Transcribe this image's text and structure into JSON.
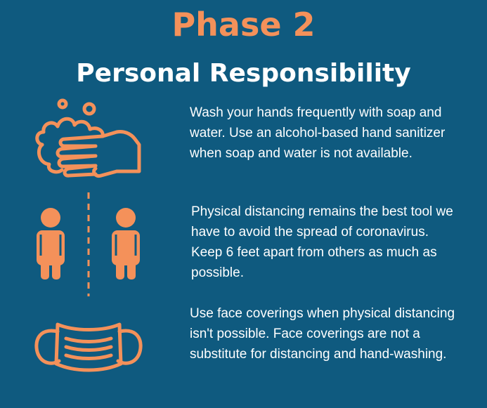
{
  "title": "Phase 2",
  "subtitle": "Personal Responsibility",
  "colors": {
    "background": "#0f5a7f",
    "accent": "#f4915a",
    "text": "#ffffff"
  },
  "items": [
    {
      "icon": "hand-washing-icon",
      "text": "Wash your hands frequently with soap and water. Use an alcohol-based hand sanitizer when soap and water is not available."
    },
    {
      "icon": "physical-distancing-icon",
      "text": "Physical distancing remains the best tool we have to avoid the spread of coronavirus. Keep 6 feet apart from others as much as possible."
    },
    {
      "icon": "face-mask-icon",
      "text": "Use face coverings when physical distancing isn't possible. Face coverings are not a substitute for distancing and hand-washing."
    }
  ]
}
